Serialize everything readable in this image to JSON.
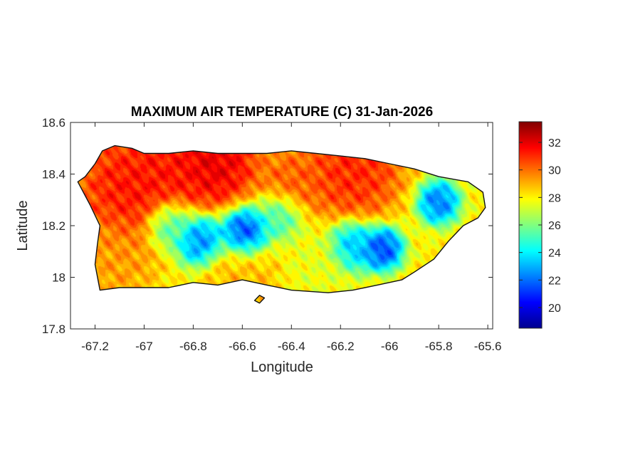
{
  "title": "MAXIMUM AIR TEMPERATURE (C) 31-Jan-2026",
  "xlabel": "Longitude",
  "ylabel": "Latitude",
  "x_ticks": [
    "-67.2",
    "-67",
    "-66.8",
    "-66.6",
    "-66.4",
    "-66.2",
    "-66",
    "-65.8",
    "-65.6"
  ],
  "y_ticks": [
    "18.6",
    "18.4",
    "18.2",
    "18",
    "17.8"
  ],
  "colorbar_ticks": [
    "32",
    "30",
    "28",
    "26",
    "24",
    "22",
    "20"
  ],
  "chart_data": {
    "type": "heatmap",
    "title": "MAXIMUM AIR TEMPERATURE (C) 31-Jan-2026",
    "xlabel": "Longitude",
    "ylabel": "Latitude",
    "xlim": [
      -67.3,
      -65.58
    ],
    "ylim": [
      17.8,
      18.6
    ],
    "colorbar": {
      "min": 18.5,
      "max": 33.5,
      "ticks": [
        20,
        22,
        24,
        26,
        28,
        30,
        32
      ],
      "colormap": "jet"
    },
    "grid": false,
    "coastline": [
      [
        -67.27,
        18.37
      ],
      [
        -67.24,
        18.39
      ],
      [
        -67.2,
        18.44
      ],
      [
        -67.17,
        18.49
      ],
      [
        -67.12,
        18.51
      ],
      [
        -67.05,
        18.5
      ],
      [
        -67.0,
        18.48
      ],
      [
        -66.9,
        18.48
      ],
      [
        -66.8,
        18.49
      ],
      [
        -66.7,
        18.48
      ],
      [
        -66.6,
        18.48
      ],
      [
        -66.5,
        18.48
      ],
      [
        -66.4,
        18.49
      ],
      [
        -66.3,
        18.48
      ],
      [
        -66.2,
        18.47
      ],
      [
        -66.1,
        18.46
      ],
      [
        -66.0,
        18.44
      ],
      [
        -65.9,
        18.42
      ],
      [
        -65.8,
        18.39
      ],
      [
        -65.68,
        18.37
      ],
      [
        -65.62,
        18.33
      ],
      [
        -65.61,
        18.27
      ],
      [
        -65.64,
        18.23
      ],
      [
        -65.7,
        18.2
      ],
      [
        -65.76,
        18.14
      ],
      [
        -65.82,
        18.07
      ],
      [
        -65.9,
        18.02
      ],
      [
        -65.95,
        17.99
      ],
      [
        -66.05,
        17.97
      ],
      [
        -66.15,
        17.95
      ],
      [
        -66.25,
        17.94
      ],
      [
        -66.4,
        17.95
      ],
      [
        -66.5,
        17.97
      ],
      [
        -66.6,
        17.99
      ],
      [
        -66.7,
        17.97
      ],
      [
        -66.8,
        17.98
      ],
      [
        -66.9,
        17.96
      ],
      [
        -67.0,
        17.96
      ],
      [
        -67.1,
        17.96
      ],
      [
        -67.18,
        17.95
      ],
      [
        -67.2,
        18.05
      ],
      [
        -67.19,
        18.13
      ],
      [
        -67.18,
        18.2
      ],
      [
        -67.22,
        18.28
      ],
      [
        -67.27,
        18.37
      ]
    ],
    "islets": [
      [
        [
          -66.55,
          17.91
        ],
        [
          -66.53,
          17.93
        ],
        [
          -66.51,
          17.92
        ],
        [
          -66.53,
          17.9
        ],
        [
          -66.55,
          17.91
        ]
      ]
    ],
    "temperature_centers": [
      {
        "lon": -67.05,
        "lat": 18.35,
        "temp": 31.8,
        "r": 0.16
      },
      {
        "lon": -66.72,
        "lat": 18.45,
        "temp": 32.5,
        "r": 0.13
      },
      {
        "lon": -66.9,
        "lat": 18.44,
        "temp": 31.5,
        "r": 0.1
      },
      {
        "lon": -66.15,
        "lat": 18.42,
        "temp": 31.5,
        "r": 0.14
      },
      {
        "lon": -66.4,
        "lat": 18.37,
        "temp": 30.5,
        "r": 0.1
      },
      {
        "lon": -67.12,
        "lat": 18.07,
        "temp": 29.5,
        "r": 0.12
      },
      {
        "lon": -66.6,
        "lat": 18.0,
        "temp": 29.0,
        "r": 0.12
      },
      {
        "lon": -66.3,
        "lat": 18.04,
        "temp": 27.5,
        "r": 0.1
      },
      {
        "lon": -66.59,
        "lat": 18.17,
        "temp": 20.0,
        "r": 0.07
      },
      {
        "lon": -66.77,
        "lat": 18.14,
        "temp": 21.5,
        "r": 0.07
      },
      {
        "lon": -66.03,
        "lat": 18.11,
        "temp": 20.5,
        "r": 0.06
      },
      {
        "lon": -66.15,
        "lat": 18.12,
        "temp": 22.5,
        "r": 0.07
      },
      {
        "lon": -65.8,
        "lat": 18.29,
        "temp": 21.5,
        "r": 0.06
      },
      {
        "lon": -66.45,
        "lat": 18.24,
        "temp": 24.5,
        "r": 0.07
      },
      {
        "lon": -66.9,
        "lat": 18.2,
        "temp": 24.5,
        "r": 0.07
      }
    ],
    "background_temp": 28
  }
}
